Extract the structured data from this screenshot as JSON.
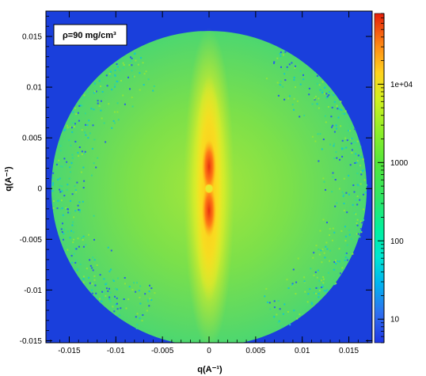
{
  "chart_data": {
    "type": "heatmap",
    "title": "",
    "annotation": "ρ=90 mg/cm³",
    "xlabel": "q(A⁻¹)",
    "ylabel": "q(A⁻¹)",
    "xlim": [
      -0.0175,
      0.0175
    ],
    "ylim": [
      -0.0152,
      0.0175
    ],
    "x_ticks": [
      {
        "value": -0.015,
        "label": "-0.015"
      },
      {
        "value": -0.01,
        "label": "-0.01"
      },
      {
        "value": -0.005,
        "label": "-0.005"
      },
      {
        "value": 0,
        "label": "0"
      },
      {
        "value": 0.005,
        "label": "0.005"
      },
      {
        "value": 0.01,
        "label": "0.01"
      },
      {
        "value": 0.015,
        "label": "0.015"
      }
    ],
    "y_ticks": [
      {
        "value": 0.015,
        "label": "0.015"
      },
      {
        "value": 0.01,
        "label": "0.01"
      },
      {
        "value": 0.005,
        "label": "0.005"
      },
      {
        "value": 0,
        "label": "0"
      },
      {
        "value": -0.005,
        "label": "-0.005"
      },
      {
        "value": -0.01,
        "label": "-0.01"
      },
      {
        "value": -0.015,
        "label": "-0.015"
      }
    ],
    "detector_radius": 0.0162,
    "background_color": "#1a3fdc",
    "colorbar": {
      "scale": "log",
      "range": [
        5,
        80000
      ],
      "ticks": [
        {
          "value": 10,
          "label": "10"
        },
        {
          "value": 100,
          "label": "100"
        },
        {
          "value": 1000,
          "label": "1000"
        },
        {
          "value": 10000,
          "label": "1e+04"
        }
      ]
    }
  }
}
